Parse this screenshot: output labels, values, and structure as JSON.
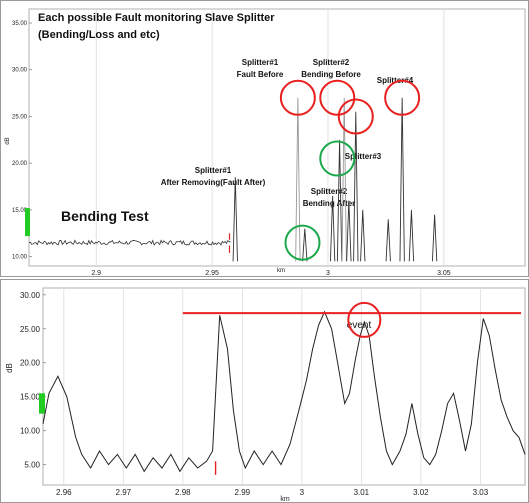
{
  "chart_data": [
    {
      "type": "line",
      "title": "Each possible  Fault monitoring Slave Splitter",
      "subtitle": "(Bending/Loss and etc)",
      "xlabel": "km",
      "ylabel": "dB",
      "xlim": [
        2.871,
        3.085
      ],
      "ylim": [
        9.0,
        36.5
      ],
      "x_ticks": [
        "2.9",
        "2.95",
        "3",
        "3.05"
      ],
      "y_ticks": [
        "35.00",
        "30.00",
        "25.00",
        "20.00",
        "15.00",
        "10.00"
      ],
      "grid": "vertical",
      "baseline": {
        "x_start": 2.871,
        "x_end": 2.958,
        "y": 11.5
      },
      "peaks": [
        {
          "x": 2.96,
          "y": 18.5
        },
        {
          "x": 2.987,
          "y": 27.0
        },
        {
          "x": 2.99,
          "y": 13.0
        },
        {
          "x": 3.002,
          "y": 16.5
        },
        {
          "x": 3.005,
          "y": 22.5
        },
        {
          "x": 3.007,
          "y": 27.0
        },
        {
          "x": 3.009,
          "y": 16.0
        },
        {
          "x": 3.012,
          "y": 25.5
        },
        {
          "x": 3.015,
          "y": 15.0
        },
        {
          "x": 3.026,
          "y": 14.0
        },
        {
          "x": 3.032,
          "y": 27.0
        },
        {
          "x": 3.036,
          "y": 15.0
        },
        {
          "x": 3.046,
          "y": 14.5
        }
      ],
      "annotations": {
        "bending_test": "Bending Test",
        "splitter1_after": [
          "Splitter#1",
          "After Removing(Fault After)"
        ],
        "splitter1_before": [
          "Splitter#1",
          "Fault Before"
        ],
        "splitter2_before": [
          "Splitter#2",
          "Bending Before"
        ],
        "splitter4": "Splitter#4",
        "splitter3": "Splitter#3",
        "splitter2_after": [
          "Splitter#2",
          "Bending After"
        ]
      },
      "circles": [
        {
          "x": 2.987,
          "y": 27.0,
          "color": "#e82020"
        },
        {
          "x": 3.004,
          "y": 27.0,
          "color": "#e82020"
        },
        {
          "x": 3.012,
          "y": 25.0,
          "color": "#e82020"
        },
        {
          "x": 3.032,
          "y": 27.0,
          "color": "#e82020"
        },
        {
          "x": 3.004,
          "y": 20.5,
          "color": "#1aa84a"
        },
        {
          "x": 2.989,
          "y": 11.5,
          "color": "#1aa84a"
        }
      ]
    },
    {
      "type": "line",
      "xlabel": "km",
      "ylabel": "dB",
      "xlim": [
        2.9565,
        3.0375
      ],
      "ylim": [
        2.0,
        31.0
      ],
      "x_ticks": [
        "2.96",
        "2.97",
        "2.98",
        "2.99",
        "3",
        "3.01",
        "3.02",
        "3.03"
      ],
      "y_ticks": [
        "30.00",
        "25.00",
        "20.00",
        "15.00",
        "10.00",
        "5.00"
      ],
      "grid": "vertical",
      "event_label": "event",
      "reference_line": {
        "x_start": 2.98,
        "x_end": 3.0375,
        "y": 27.3,
        "color": "#e82020"
      },
      "event_circle": {
        "x": 3.0105,
        "y": 26.3
      },
      "points": [
        [
          2.9565,
          11
        ],
        [
          2.9575,
          15.5
        ],
        [
          2.959,
          18
        ],
        [
          2.9605,
          15
        ],
        [
          2.962,
          9
        ],
        [
          2.963,
          6.5
        ],
        [
          2.9645,
          4.5
        ],
        [
          2.966,
          7
        ],
        [
          2.9675,
          5
        ],
        [
          2.969,
          6.5
        ],
        [
          2.9705,
          4.5
        ],
        [
          2.972,
          6.5
        ],
        [
          2.9735,
          4
        ],
        [
          2.975,
          6
        ],
        [
          2.9765,
          4.5
        ],
        [
          2.978,
          6.5
        ],
        [
          2.9795,
          4
        ],
        [
          2.981,
          6
        ],
        [
          2.9825,
          4.5
        ],
        [
          2.984,
          5.5
        ],
        [
          2.985,
          7
        ],
        [
          2.9862,
          27
        ],
        [
          2.9875,
          22
        ],
        [
          2.9885,
          13
        ],
        [
          2.9895,
          7
        ],
        [
          2.9905,
          4.5
        ],
        [
          2.992,
          7
        ],
        [
          2.9935,
          5
        ],
        [
          2.995,
          7
        ],
        [
          2.9965,
          5
        ],
        [
          2.998,
          8
        ],
        [
          2.9995,
          13
        ],
        [
          3.0008,
          17.5
        ],
        [
          3.0018,
          22
        ],
        [
          3.0028,
          25.5
        ],
        [
          3.0038,
          27.5
        ],
        [
          3.005,
          25
        ],
        [
          3.006,
          20
        ],
        [
          3.0072,
          14
        ],
        [
          3.008,
          15.5
        ],
        [
          3.009,
          20.5
        ],
        [
          3.0098,
          24
        ],
        [
          3.0105,
          26
        ],
        [
          3.0113,
          24
        ],
        [
          3.0122,
          18
        ],
        [
          3.0132,
          12
        ],
        [
          3.0142,
          7
        ],
        [
          3.0152,
          5
        ],
        [
          3.0165,
          7
        ],
        [
          3.0175,
          9.5
        ],
        [
          3.0185,
          14
        ],
        [
          3.0195,
          9.5
        ],
        [
          3.0205,
          6
        ],
        [
          3.0215,
          5
        ],
        [
          3.0225,
          6.5
        ],
        [
          3.0235,
          10
        ],
        [
          3.0245,
          14
        ],
        [
          3.0255,
          15.5
        ],
        [
          3.0265,
          11.5
        ],
        [
          3.0275,
          7
        ],
        [
          3.0285,
          11
        ],
        [
          3.0295,
          20
        ],
        [
          3.0305,
          26.5
        ],
        [
          3.0315,
          24
        ],
        [
          3.0325,
          19
        ],
        [
          3.0335,
          14.5
        ],
        [
          3.0345,
          12
        ],
        [
          3.0355,
          10
        ],
        [
          3.0365,
          9
        ],
        [
          3.0375,
          6.5
        ]
      ]
    }
  ]
}
